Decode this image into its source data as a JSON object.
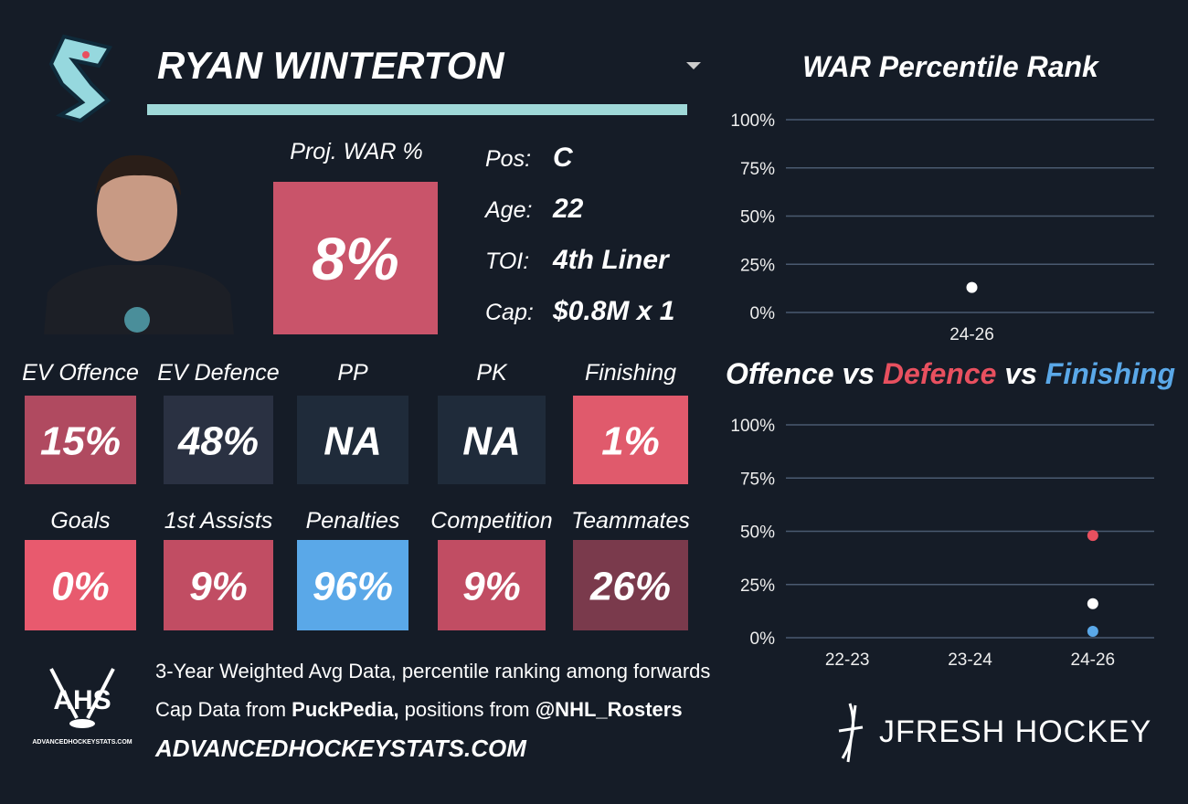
{
  "header": {
    "name": "RYAN WINTERTON"
  },
  "projection": {
    "label": "Proj. WAR %",
    "value": "8%",
    "color": "#c9546a"
  },
  "info": [
    {
      "label": "Pos:",
      "value": "C"
    },
    {
      "label": "Age:",
      "value": "22"
    },
    {
      "label": "TOI:",
      "value": "4th Liner"
    },
    {
      "label": "Cap:",
      "value": "$0.8M x 1"
    }
  ],
  "tiles": [
    {
      "label": "EV Offence",
      "value": "15%",
      "color": "#b04a60"
    },
    {
      "label": "EV Defence",
      "value": "48%",
      "color": "#2a3142"
    },
    {
      "label": "PP",
      "value": "NA",
      "color": "#1f2b3a"
    },
    {
      "label": "PK",
      "value": "NA",
      "color": "#1f2b3a"
    },
    {
      "label": "Finishing",
      "value": "1%",
      "color": "#e05a6c"
    },
    {
      "label": "Goals",
      "value": "0%",
      "color": "#e85a6e"
    },
    {
      "label": "1st Assists",
      "value": "9%",
      "color": "#c14d63"
    },
    {
      "label": "Penalties",
      "value": "96%",
      "color": "#5aa8e8"
    },
    {
      "label": "Competition",
      "value": "9%",
      "color": "#c14d63"
    },
    {
      "label": "Teammates",
      "value": "26%",
      "color": "#7a3a4c"
    }
  ],
  "footer": {
    "note": "3-Year Weighted Avg Data, percentile ranking among forwards",
    "credits": [
      "Cap Data from ",
      "PuckPedia,",
      " positions from ",
      "@NHL_Rosters"
    ],
    "site": "ADVANCEDHOCKEYSTATS.COM",
    "ahs_logo": "AHS",
    "ahs_logo_site": "ADVANCEDHOCKEYSTATS.COM",
    "brand": "JFRESH HOCKEY"
  },
  "chart_data": [
    {
      "type": "scatter",
      "title": "WAR Percentile Rank",
      "categories": [
        "24-26"
      ],
      "series": [
        {
          "name": "WAR",
          "color": "#ffffff",
          "values": [
            13
          ]
        }
      ],
      "ylim": [
        0,
        100
      ],
      "yticks": [
        {
          "value": 0,
          "label": "0%"
        },
        {
          "value": 25,
          "label": "25%"
        },
        {
          "value": 50,
          "label": "50%"
        },
        {
          "value": 75,
          "label": "75%"
        },
        {
          "value": 100,
          "label": "100%"
        }
      ],
      "grid": true
    },
    {
      "type": "scatter",
      "title_separator": "vs",
      "categories": [
        "22-23",
        "23-24",
        "24-26"
      ],
      "series": [
        {
          "name": "Offence",
          "color": "#ffffff",
          "values": [
            null,
            null,
            16
          ]
        },
        {
          "name": "Defence",
          "color": "#e8505f",
          "values": [
            null,
            null,
            48
          ]
        },
        {
          "name": "Finishing",
          "color": "#5aa8e8",
          "values": [
            null,
            null,
            3
          ]
        }
      ],
      "ylim": [
        0,
        100
      ],
      "yticks": [
        {
          "value": 0,
          "label": "0%"
        },
        {
          "value": 25,
          "label": "25%"
        },
        {
          "value": 50,
          "label": "50%"
        },
        {
          "value": 75,
          "label": "75%"
        },
        {
          "value": 100,
          "label": "100%"
        }
      ],
      "grid": true
    }
  ]
}
